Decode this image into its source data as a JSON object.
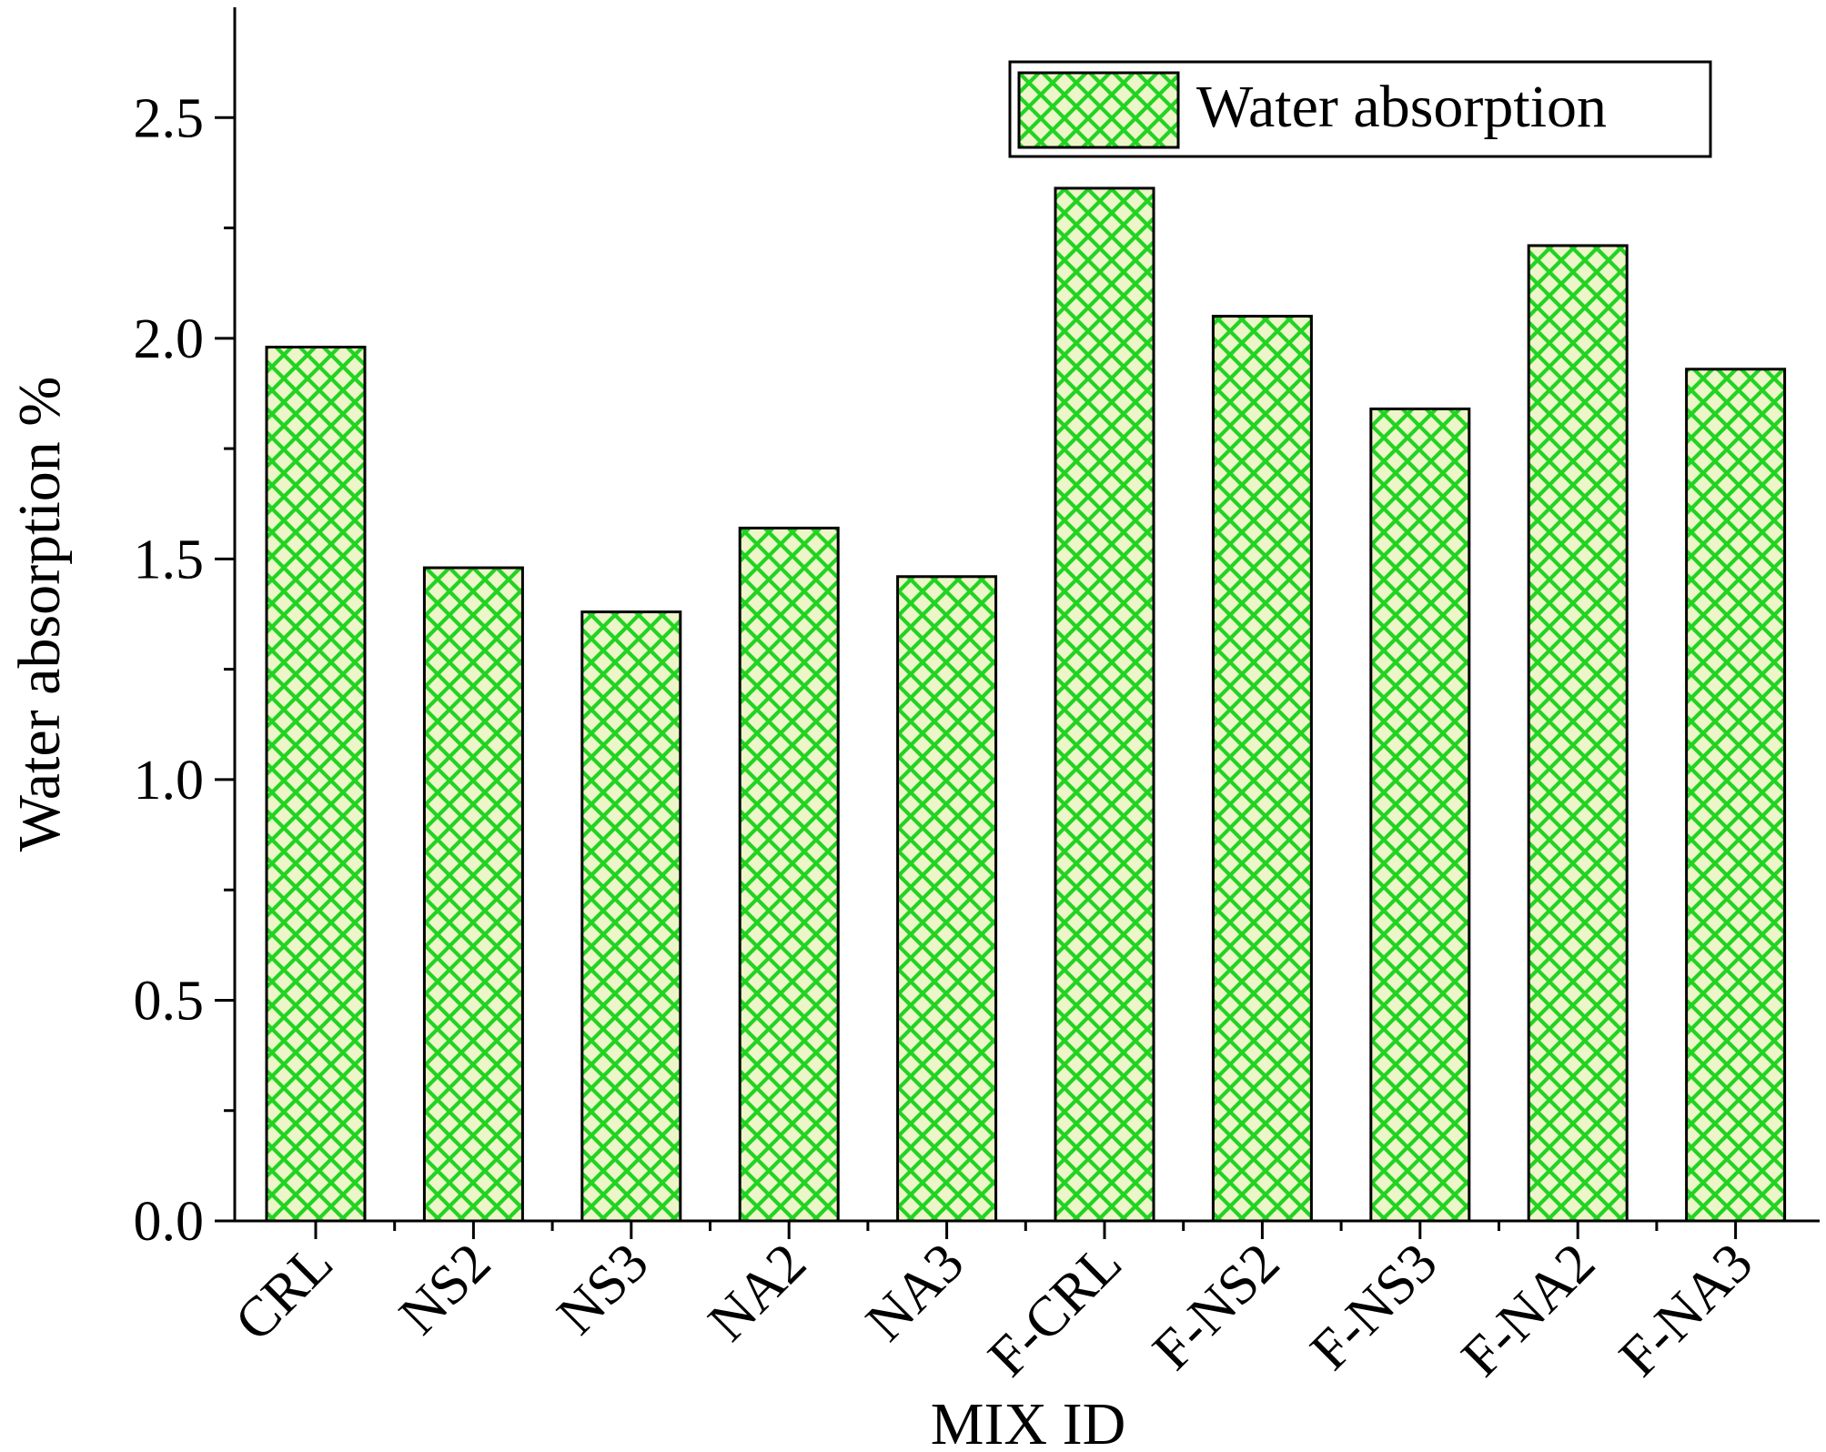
{
  "chart_data": {
    "type": "bar",
    "categories": [
      "CRL",
      "NS2",
      "NS3",
      "NA2",
      "NA3",
      "F-CRL",
      "F-NS2",
      "F-NS3",
      "F-NA2",
      "F-NA3"
    ],
    "series": [
      {
        "name": "Water absorption",
        "values": [
          1.98,
          1.48,
          1.38,
          1.57,
          1.46,
          2.34,
          2.05,
          1.84,
          2.21,
          1.93
        ]
      }
    ],
    "xlabel": "MIX ID",
    "ylabel": "Water absorption %",
    "ylim": [
      0,
      2.75
    ],
    "yticks": [
      "0.0",
      "0.5",
      "1.0",
      "1.5",
      "2.0",
      "2.5"
    ],
    "legend_position": "top-right",
    "grid": false,
    "colors": {
      "bar_fill": "#ecf6c8",
      "bar_hatch": "#22d322",
      "bar_edge": "#000000",
      "axis": "#000000"
    }
  }
}
